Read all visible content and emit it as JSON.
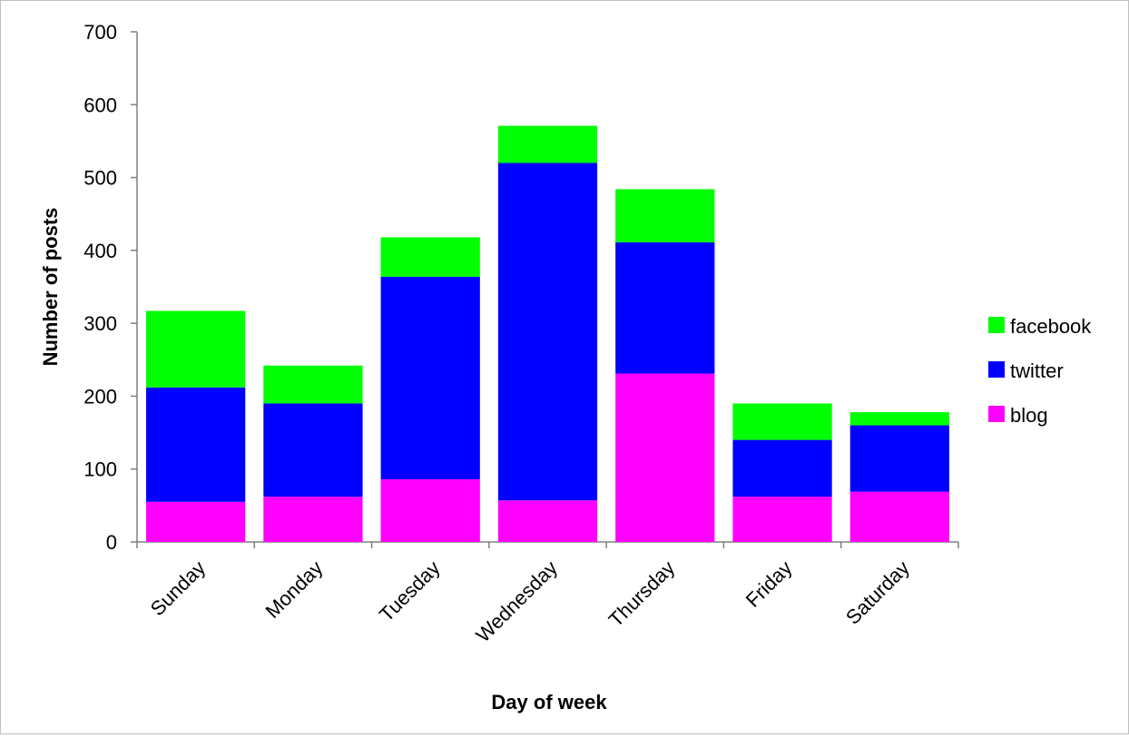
{
  "chart_data": {
    "type": "bar",
    "stacked": true,
    "categories": [
      "Sunday",
      "Monday",
      "Tuesday",
      "Wednesday",
      "Thursday",
      "Friday",
      "Saturday"
    ],
    "series": [
      {
        "name": "blog",
        "color": "#ff00ff",
        "values": [
          55,
          62,
          86,
          57,
          231,
          62,
          69
        ]
      },
      {
        "name": "twitter",
        "color": "#0000ff",
        "values": [
          157,
          128,
          278,
          463,
          180,
          78,
          91
        ]
      },
      {
        "name": "facebook",
        "color": "#00ff00",
        "values": [
          105,
          52,
          54,
          51,
          73,
          50,
          18
        ]
      }
    ],
    "xlabel": "Day of week",
    "ylabel": "Number of posts",
    "ylim": [
      0,
      700
    ],
    "yticks": [
      "0",
      "100",
      "200",
      "300",
      "400",
      "500",
      "600",
      "700"
    ],
    "grid": false,
    "legend": [
      "facebook",
      "twitter",
      "blog"
    ],
    "legend_position": "right"
  }
}
